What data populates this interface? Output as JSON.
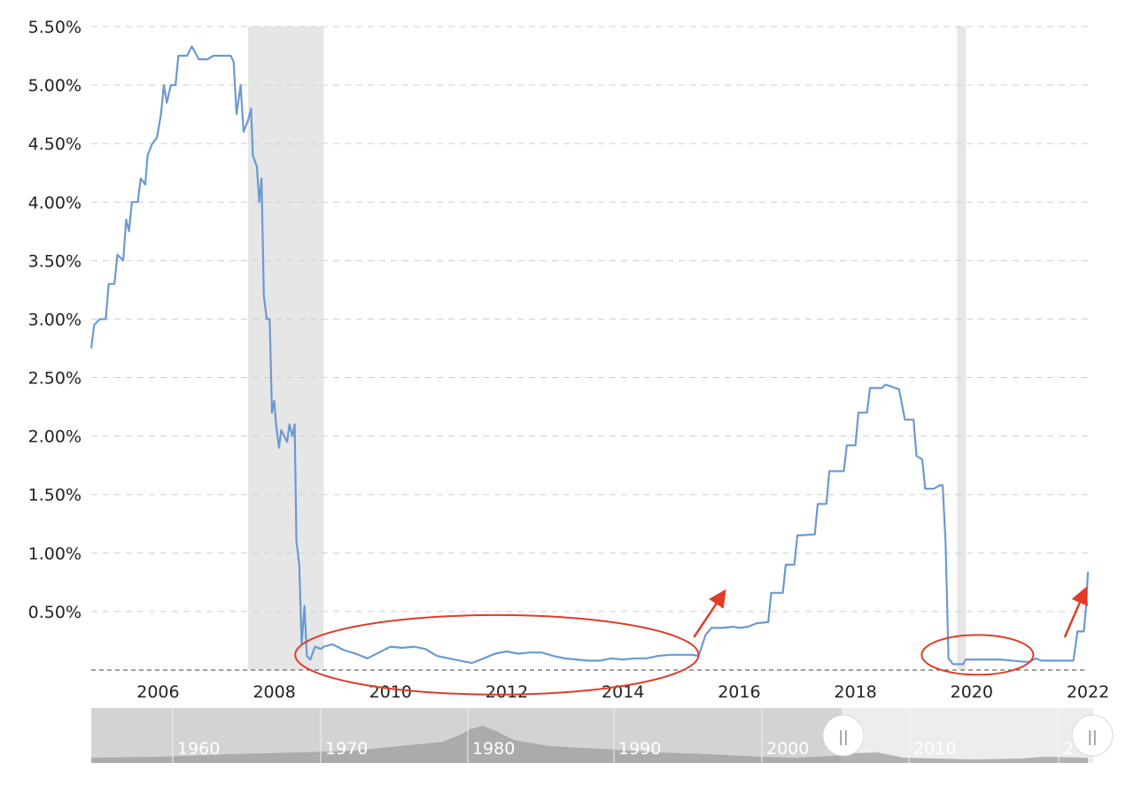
{
  "chart_data": {
    "type": "line",
    "title": "",
    "xlabel": "",
    "ylabel": "",
    "xlim": [
      2004.85,
      2022.0
    ],
    "ylim": [
      0,
      5.5
    ],
    "y_ticks": [
      {
        "value": 0.5,
        "label": "0.50%"
      },
      {
        "value": 1.0,
        "label": "1.00%"
      },
      {
        "value": 1.5,
        "label": "1.50%"
      },
      {
        "value": 2.0,
        "label": "2.00%"
      },
      {
        "value": 2.5,
        "label": "2.50%"
      },
      {
        "value": 3.0,
        "label": "3.00%"
      },
      {
        "value": 3.5,
        "label": "3.50%"
      },
      {
        "value": 4.0,
        "label": "4.00%"
      },
      {
        "value": 4.5,
        "label": "4.50%"
      },
      {
        "value": 5.0,
        "label": "5.00%"
      },
      {
        "value": 5.5,
        "label": "5.50%"
      }
    ],
    "x_ticks": [
      {
        "value": 2006,
        "label": "2006"
      },
      {
        "value": 2008,
        "label": "2008"
      },
      {
        "value": 2010,
        "label": "2010"
      },
      {
        "value": 2012,
        "label": "2012"
      },
      {
        "value": 2014,
        "label": "2014"
      },
      {
        "value": 2016,
        "label": "2016"
      },
      {
        "value": 2018,
        "label": "2018"
      },
      {
        "value": 2020,
        "label": "2020"
      },
      {
        "value": 2022,
        "label": "2022"
      }
    ],
    "grid": "horizontal-dashed",
    "legend": "none",
    "recessions": [
      {
        "start": 2007.55,
        "end": 2008.85
      },
      {
        "start": 2019.75,
        "end": 2019.9
      }
    ],
    "series": [
      {
        "color": "#6a9ad0",
        "points": [
          [
            2004.85,
            2.75
          ],
          [
            2004.9,
            2.95
          ],
          [
            2005.0,
            3.0
          ],
          [
            2005.1,
            3.0
          ],
          [
            2005.15,
            3.3
          ],
          [
            2005.25,
            3.3
          ],
          [
            2005.3,
            3.55
          ],
          [
            2005.4,
            3.5
          ],
          [
            2005.45,
            3.85
          ],
          [
            2005.5,
            3.75
          ],
          [
            2005.55,
            4.0
          ],
          [
            2005.65,
            4.0
          ],
          [
            2005.7,
            4.2
          ],
          [
            2005.78,
            4.15
          ],
          [
            2005.82,
            4.4
          ],
          [
            2005.9,
            4.5
          ],
          [
            2005.98,
            4.55
          ],
          [
            2006.05,
            4.75
          ],
          [
            2006.1,
            5.0
          ],
          [
            2006.15,
            4.85
          ],
          [
            2006.22,
            5.0
          ],
          [
            2006.3,
            5.0
          ],
          [
            2006.35,
            5.25
          ],
          [
            2006.5,
            5.25
          ],
          [
            2006.58,
            5.33
          ],
          [
            2006.7,
            5.22
          ],
          [
            2006.85,
            5.22
          ],
          [
            2006.95,
            5.25
          ],
          [
            2007.1,
            5.25
          ],
          [
            2007.25,
            5.25
          ],
          [
            2007.3,
            5.2
          ],
          [
            2007.35,
            4.75
          ],
          [
            2007.42,
            5.0
          ],
          [
            2007.47,
            4.6
          ],
          [
            2007.55,
            4.7
          ],
          [
            2007.6,
            4.8
          ],
          [
            2007.63,
            4.4
          ],
          [
            2007.7,
            4.3
          ],
          [
            2007.74,
            4.0
          ],
          [
            2007.78,
            4.2
          ],
          [
            2007.82,
            3.2
          ],
          [
            2007.87,
            3.0
          ],
          [
            2007.92,
            3.0
          ],
          [
            2007.96,
            2.2
          ],
          [
            2008.0,
            2.3
          ],
          [
            2008.03,
            2.1
          ],
          [
            2008.08,
            1.9
          ],
          [
            2008.12,
            2.05
          ],
          [
            2008.17,
            2.0
          ],
          [
            2008.22,
            1.95
          ],
          [
            2008.26,
            2.1
          ],
          [
            2008.31,
            2.0
          ],
          [
            2008.35,
            2.1
          ],
          [
            2008.38,
            1.1
          ],
          [
            2008.43,
            0.9
          ],
          [
            2008.47,
            0.22
          ],
          [
            2008.52,
            0.55
          ],
          [
            2008.56,
            0.12
          ],
          [
            2008.62,
            0.09
          ],
          [
            2008.7,
            0.2
          ],
          [
            2008.8,
            0.18
          ],
          [
            2008.85,
            0.2
          ],
          [
            2009.0,
            0.22
          ],
          [
            2009.2,
            0.17
          ],
          [
            2009.4,
            0.14
          ],
          [
            2009.6,
            0.1
          ],
          [
            2009.8,
            0.15
          ],
          [
            2010.0,
            0.2
          ],
          [
            2010.2,
            0.19
          ],
          [
            2010.4,
            0.2
          ],
          [
            2010.6,
            0.18
          ],
          [
            2010.8,
            0.12
          ],
          [
            2011.0,
            0.1
          ],
          [
            2011.2,
            0.08
          ],
          [
            2011.4,
            0.06
          ],
          [
            2011.6,
            0.1
          ],
          [
            2011.8,
            0.14
          ],
          [
            2012.0,
            0.16
          ],
          [
            2012.2,
            0.14
          ],
          [
            2012.4,
            0.15
          ],
          [
            2012.6,
            0.15
          ],
          [
            2012.8,
            0.12
          ],
          [
            2013.0,
            0.1
          ],
          [
            2013.2,
            0.09
          ],
          [
            2013.4,
            0.08
          ],
          [
            2013.6,
            0.08
          ],
          [
            2013.8,
            0.1
          ],
          [
            2014.0,
            0.09
          ],
          [
            2014.2,
            0.1
          ],
          [
            2014.4,
            0.1
          ],
          [
            2014.6,
            0.12
          ],
          [
            2014.8,
            0.13
          ],
          [
            2015.0,
            0.13
          ],
          [
            2015.2,
            0.13
          ],
          [
            2015.3,
            0.12
          ],
          [
            2015.42,
            0.3
          ],
          [
            2015.52,
            0.36
          ],
          [
            2015.7,
            0.36
          ],
          [
            2015.9,
            0.37
          ],
          [
            2016.0,
            0.36
          ],
          [
            2016.15,
            0.37
          ],
          [
            2016.3,
            0.4
          ],
          [
            2016.5,
            0.41
          ],
          [
            2016.55,
            0.66
          ],
          [
            2016.75,
            0.66
          ],
          [
            2016.8,
            0.9
          ],
          [
            2016.95,
            0.9
          ],
          [
            2017.0,
            1.15
          ],
          [
            2017.3,
            1.16
          ],
          [
            2017.35,
            1.42
          ],
          [
            2017.5,
            1.42
          ],
          [
            2017.55,
            1.7
          ],
          [
            2017.8,
            1.7
          ],
          [
            2017.85,
            1.92
          ],
          [
            2018.0,
            1.92
          ],
          [
            2018.05,
            2.2
          ],
          [
            2018.2,
            2.2
          ],
          [
            2018.25,
            2.41
          ],
          [
            2018.45,
            2.41
          ],
          [
            2018.52,
            2.44
          ],
          [
            2018.75,
            2.4
          ],
          [
            2018.85,
            2.14
          ],
          [
            2019.0,
            2.14
          ],
          [
            2019.05,
            1.83
          ],
          [
            2019.15,
            1.8
          ],
          [
            2019.2,
            1.55
          ],
          [
            2019.35,
            1.55
          ],
          [
            2019.45,
            1.58
          ],
          [
            2019.5,
            1.58
          ],
          [
            2019.55,
            1.1
          ],
          [
            2019.6,
            0.1
          ],
          [
            2019.68,
            0.05
          ],
          [
            2019.85,
            0.05
          ],
          [
            2019.9,
            0.09
          ],
          [
            2020.1,
            0.09
          ],
          [
            2020.3,
            0.09
          ],
          [
            2020.5,
            0.09
          ],
          [
            2020.7,
            0.08
          ],
          [
            2020.9,
            0.07
          ],
          [
            2021.0,
            0.07
          ],
          [
            2021.1,
            0.1
          ],
          [
            2021.2,
            0.08
          ],
          [
            2021.4,
            0.08
          ],
          [
            2021.6,
            0.08
          ],
          [
            2021.75,
            0.08
          ],
          [
            2021.82,
            0.33
          ],
          [
            2021.93,
            0.33
          ],
          [
            2021.97,
            0.55
          ],
          [
            2022.0,
            0.84
          ]
        ]
      }
    ],
    "annotations": [
      {
        "type": "ellipse",
        "color": "#e03c28",
        "center": [
          2011.83,
          0.13
        ],
        "rx_years": 3.47,
        "ry_pct": 0.34
      },
      {
        "type": "ellipse",
        "color": "#e03c28",
        "center": [
          2020.1,
          0.13
        ],
        "rx_years": 0.96,
        "ry_pct": 0.17
      },
      {
        "type": "arrow",
        "color": "#e03c28",
        "from": [
          2015.22,
          0.28
        ],
        "to": [
          2015.73,
          0.66
        ]
      },
      {
        "type": "arrow",
        "color": "#e03c28",
        "from": [
          2021.6,
          0.28
        ],
        "to": [
          2021.95,
          0.68
        ]
      }
    ],
    "navigator": {
      "labels": [
        "1960",
        "1970",
        "1980",
        "1990",
        "2000",
        "2010",
        "2"
      ],
      "handle_symbol": "||"
    }
  }
}
